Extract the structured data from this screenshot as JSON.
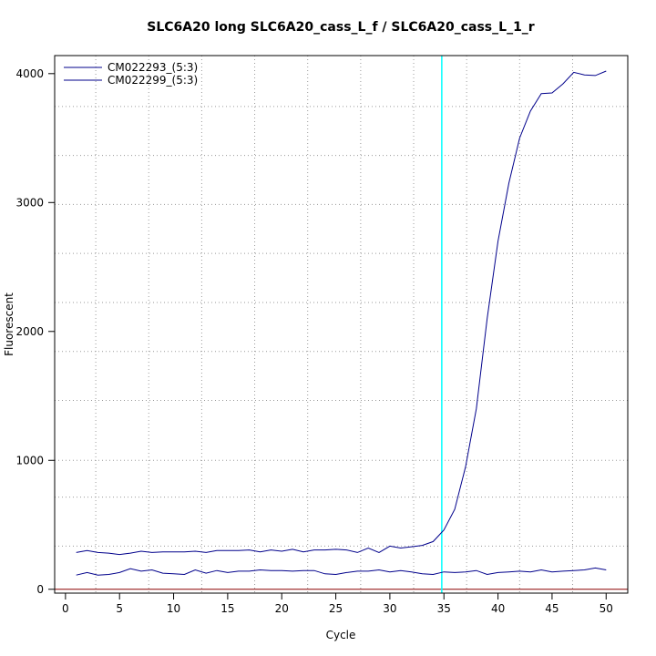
{
  "chart_data": {
    "type": "line",
    "title": "SLC6A20 long SLC6A20_cass_L_f / SLC6A20_cass_L_1_r",
    "xlabel": "Cycle",
    "ylabel": "Fluorescent",
    "xlim": [
      -1,
      52
    ],
    "ylim": [
      -30,
      4140
    ],
    "x_ticks": [
      0,
      5,
      10,
      15,
      20,
      25,
      30,
      35,
      40,
      45,
      50
    ],
    "y_ticks": [
      0,
      1000,
      2000,
      3000,
      4000
    ],
    "x_grid": [
      2.8,
      7.7,
      12.6,
      17.5,
      22.4,
      27.3,
      32.2,
      37.1,
      42.0,
      46.9
    ],
    "y_grid": [
      335,
      715,
      1000,
      1465,
      1845,
      2225,
      2605,
      2985,
      3365,
      3745
    ],
    "grid": true,
    "threshold": {
      "axis": "x",
      "value": 34.8,
      "color": "#00ffff"
    },
    "baseline": {
      "axis": "y",
      "value": 0,
      "color": "#8b0000"
    },
    "legend_position": "top-left",
    "line_color": "#00008b",
    "series": [
      {
        "name": "CM022293_(5:3)",
        "x": [
          1,
          2,
          3,
          4,
          5,
          6,
          7,
          8,
          9,
          10,
          11,
          12,
          13,
          14,
          15,
          16,
          17,
          18,
          19,
          20,
          21,
          22,
          23,
          24,
          25,
          26,
          27,
          28,
          29,
          30,
          31,
          32,
          33,
          34,
          35,
          36,
          37,
          38,
          39,
          40,
          41,
          42,
          43,
          44,
          45,
          46,
          47,
          48,
          49,
          50
        ],
        "values": [
          285,
          300,
          285,
          280,
          270,
          280,
          295,
          285,
          290,
          290,
          290,
          295,
          285,
          300,
          300,
          300,
          305,
          290,
          305,
          295,
          310,
          290,
          305,
          305,
          310,
          305,
          285,
          320,
          285,
          335,
          320,
          330,
          340,
          370,
          460,
          620,
          950,
          1400,
          2100,
          2700,
          3150,
          3500,
          3710,
          3845,
          3850,
          3920,
          4010,
          3990,
          3985,
          4020
        ]
      },
      {
        "name": "CM022299_(5:3)",
        "x": [
          1,
          2,
          3,
          4,
          5,
          6,
          7,
          8,
          9,
          10,
          11,
          12,
          13,
          14,
          15,
          16,
          17,
          18,
          19,
          20,
          21,
          22,
          23,
          24,
          25,
          26,
          27,
          28,
          29,
          30,
          31,
          32,
          33,
          34,
          35,
          36,
          37,
          38,
          39,
          40,
          41,
          42,
          43,
          44,
          45,
          46,
          47,
          48,
          49,
          50
        ],
        "values": [
          110,
          130,
          110,
          115,
          130,
          160,
          140,
          150,
          125,
          120,
          115,
          150,
          125,
          145,
          130,
          140,
          140,
          150,
          145,
          145,
          140,
          145,
          145,
          120,
          115,
          130,
          140,
          140,
          150,
          135,
          145,
          135,
          120,
          115,
          135,
          130,
          135,
          145,
          115,
          130,
          135,
          140,
          135,
          150,
          135,
          140,
          145,
          150,
          165,
          150
        ]
      }
    ]
  }
}
